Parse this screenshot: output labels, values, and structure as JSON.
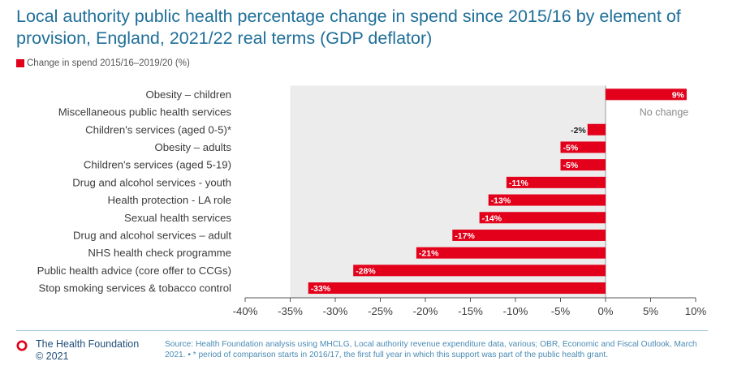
{
  "title": "Local authority public health percentage change in spend since 2015/16 by element of provision, England, 2021/22 real terms (GDP deflator)",
  "legend": {
    "label": "Change in spend 2015/16–2019/20 (%)"
  },
  "colors": {
    "bar": "#e2001a",
    "plot_bg": "#ececec",
    "title": "#1f6f99",
    "footer_text": "#4a8bb4",
    "brand": "#1f4e79"
  },
  "chart_data": {
    "type": "bar",
    "orientation": "horizontal",
    "categories": [
      "Obesity – children",
      "Miscellaneous public health services",
      "Children's services (aged 0-5)*",
      "Obesity – adults",
      "Children's services (aged 5-19)",
      "Drug and alcohol services - youth",
      "Health protection - LA role",
      "Sexual health services",
      "Drug and alcohol services – adult",
      "NHS health check programme",
      "Public health advice (core offer to CCGs)",
      "Stop smoking services & tobacco control"
    ],
    "series": [
      {
        "name": "Change in spend 2015/16–2019/20 (%)",
        "values": [
          9,
          0,
          -2,
          -5,
          -5,
          -11,
          -13,
          -14,
          -17,
          -21,
          -28,
          -33
        ]
      }
    ],
    "data_labels": [
      "9%",
      "No change",
      "-2%",
      "-5%",
      "-5%",
      "-11%",
      "-13%",
      "-14%",
      "-17%",
      "-21%",
      "-28%",
      "-33%"
    ],
    "xlim": [
      -40,
      10
    ],
    "xticks": [
      -40,
      -35,
      -30,
      -25,
      -20,
      -15,
      -10,
      -5,
      0,
      5,
      10
    ],
    "xtick_labels": [
      "-40%",
      "-35%",
      "-30%",
      "-25%",
      "-20%",
      "-15%",
      "-10%",
      "-5%",
      "0%",
      "5%",
      "10%"
    ],
    "shaded_region": [
      -35,
      0
    ],
    "grid": false,
    "legend_position": "top-left"
  },
  "footer": {
    "brand_name": "The Health Foundation",
    "copyright": "© 2021",
    "source": "Source: Health Foundation analysis using MHCLG, Local authority revenue expenditure data, various; OBR, Economic and Fiscal Outlook, March 2021. • * period of comparison starts in 2016/17, the first full year in which this support was part of the public health grant."
  }
}
